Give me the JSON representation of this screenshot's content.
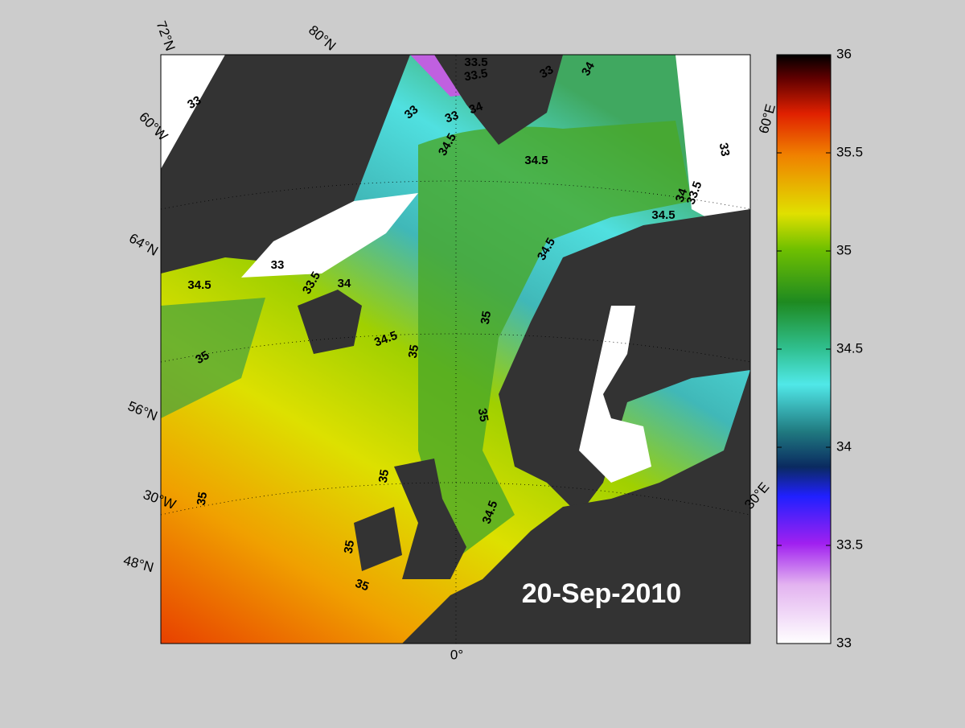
{
  "map": {
    "date": "20-Sep-2010",
    "graticule_labels": [
      "72°N",
      "80°N",
      "60°W",
      "64°N",
      "56°N",
      "30°W",
      "48°N",
      "0°",
      "30°E",
      "60°E"
    ],
    "contour_labels": [
      "33",
      "33.5",
      "33.5",
      "33",
      "34",
      "33",
      "33",
      "34",
      "34.5",
      "34.5",
      "33",
      "34",
      "33.5",
      "34.5",
      "34.5",
      "33",
      "33.5",
      "34",
      "34.5",
      "35",
      "34.5",
      "35",
      "35",
      "35",
      "35",
      "35",
      "34.5",
      "35",
      "35"
    ]
  },
  "colorbar": {
    "lim": [
      33,
      36
    ],
    "ticks": [
      33,
      33.5,
      34,
      34.5,
      35,
      35.5,
      36
    ]
  }
}
